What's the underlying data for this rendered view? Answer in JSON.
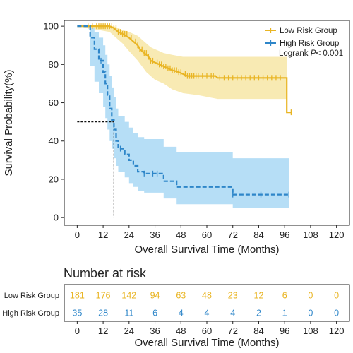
{
  "colors": {
    "low": "#E9B524",
    "low_band": "#F7E6A6",
    "high": "#2E86C9",
    "high_band": "#A9D8F5",
    "axis": "#222222"
  },
  "chart_data": {
    "type": "line",
    "subtype": "kaplan-meier",
    "xlabel": "Overall Survival Time (Months)",
    "ylabel": "Survival Probability(%)",
    "xlim": [
      -6,
      126
    ],
    "ylim": [
      -4,
      103
    ],
    "xticks": [
      0,
      12,
      24,
      36,
      48,
      60,
      72,
      84,
      96,
      108,
      120
    ],
    "yticks": [
      0,
      20,
      40,
      60,
      80,
      100
    ],
    "legend_position": "top-right",
    "annotation": {
      "prefix": "Logrank ",
      "italic": "P",
      "suffix": "< 0.001"
    },
    "median_line": {
      "x": 17,
      "y": 50
    },
    "series": [
      {
        "name": "Low Risk Group",
        "color_key": "low",
        "step": [
          [
            0,
            100
          ],
          [
            15,
            100
          ],
          [
            17,
            99
          ],
          [
            19,
            97
          ],
          [
            21,
            96
          ],
          [
            24,
            94
          ],
          [
            26,
            92
          ],
          [
            28,
            90
          ],
          [
            29,
            88
          ],
          [
            31,
            86
          ],
          [
            33,
            84
          ],
          [
            34,
            82
          ],
          [
            36,
            81
          ],
          [
            38,
            80
          ],
          [
            40,
            79
          ],
          [
            42,
            78
          ],
          [
            44,
            77
          ],
          [
            47,
            76
          ],
          [
            49,
            75
          ],
          [
            51,
            74
          ],
          [
            56,
            74
          ],
          [
            64,
            74
          ],
          [
            65,
            73
          ],
          [
            97,
            73
          ],
          [
            97,
            55
          ],
          [
            99,
            55
          ]
        ],
        "band_upper": [
          [
            0,
            100
          ],
          [
            15,
            100
          ],
          [
            17,
            100
          ],
          [
            19,
            99
          ],
          [
            21,
            98
          ],
          [
            24,
            97
          ],
          [
            26,
            96
          ],
          [
            28,
            95
          ],
          [
            30,
            93
          ],
          [
            32,
            91
          ],
          [
            34,
            89
          ],
          [
            36,
            88
          ],
          [
            38,
            87
          ],
          [
            40,
            86
          ],
          [
            44,
            85
          ],
          [
            49,
            84
          ],
          [
            56,
            84
          ],
          [
            65,
            84
          ],
          [
            97,
            84
          ]
        ],
        "band_lower": [
          [
            97,
            33
          ],
          [
            97,
            62
          ],
          [
            65,
            62
          ],
          [
            56,
            64
          ],
          [
            49,
            65
          ],
          [
            44,
            67
          ],
          [
            40,
            70
          ],
          [
            36,
            72
          ],
          [
            32,
            76
          ],
          [
            28,
            82
          ],
          [
            24,
            87
          ],
          [
            21,
            91
          ],
          [
            19,
            93
          ],
          [
            17,
            95
          ],
          [
            15,
            97
          ],
          [
            0,
            100
          ]
        ],
        "censor": [
          5,
          7,
          9,
          10,
          11,
          12,
          13,
          14,
          15,
          16,
          17,
          18,
          19,
          20,
          21,
          22,
          23,
          25,
          27,
          28,
          29,
          30,
          31,
          32,
          33,
          34,
          35,
          37,
          38,
          39,
          40,
          41,
          42,
          43,
          44,
          45,
          46,
          47,
          48,
          50,
          51,
          52,
          53,
          54,
          55,
          56,
          58,
          60,
          62,
          63,
          66,
          68,
          70,
          72,
          74,
          76,
          78,
          80,
          82,
          84,
          86,
          88,
          90,
          92,
          94,
          99
        ]
      },
      {
        "name": "High Risk Group",
        "color_key": "high",
        "step": [
          [
            0,
            100
          ],
          [
            6,
            100
          ],
          [
            6,
            94
          ],
          [
            8,
            94
          ],
          [
            8,
            88
          ],
          [
            10,
            88
          ],
          [
            10,
            82
          ],
          [
            12,
            82
          ],
          [
            12,
            76
          ],
          [
            13,
            76
          ],
          [
            13,
            70
          ],
          [
            14,
            70
          ],
          [
            14,
            64
          ],
          [
            15,
            64
          ],
          [
            15,
            57
          ],
          [
            16,
            57
          ],
          [
            16,
            51
          ],
          [
            17,
            51
          ],
          [
            17,
            46
          ],
          [
            18,
            46
          ],
          [
            18,
            40
          ],
          [
            19,
            40
          ],
          [
            19,
            36
          ],
          [
            22,
            36
          ],
          [
            22,
            33
          ],
          [
            24,
            33
          ],
          [
            24,
            30
          ],
          [
            26,
            30
          ],
          [
            26,
            27
          ],
          [
            28,
            27
          ],
          [
            28,
            24
          ],
          [
            31,
            24
          ],
          [
            31,
            23
          ],
          [
            40,
            23
          ],
          [
            40,
            19
          ],
          [
            46,
            19
          ],
          [
            46,
            16
          ],
          [
            72,
            16
          ],
          [
            72,
            12
          ],
          [
            98,
            12
          ]
        ],
        "band_upper": [
          [
            0,
            100
          ],
          [
            6,
            100
          ],
          [
            6,
            99
          ],
          [
            8,
            99
          ],
          [
            8,
            97
          ],
          [
            10,
            97
          ],
          [
            10,
            94
          ],
          [
            12,
            94
          ],
          [
            12,
            90
          ],
          [
            13,
            90
          ],
          [
            13,
            85
          ],
          [
            14,
            85
          ],
          [
            14,
            80
          ],
          [
            15,
            80
          ],
          [
            15,
            74
          ],
          [
            16,
            74
          ],
          [
            16,
            68
          ],
          [
            17,
            68
          ],
          [
            17,
            63
          ],
          [
            18,
            63
          ],
          [
            18,
            57
          ],
          [
            19,
            57
          ],
          [
            19,
            53
          ],
          [
            22,
            53
          ],
          [
            22,
            50
          ],
          [
            24,
            50
          ],
          [
            24,
            47
          ],
          [
            26,
            47
          ],
          [
            26,
            44
          ],
          [
            28,
            44
          ],
          [
            28,
            42
          ],
          [
            31,
            42
          ],
          [
            31,
            41
          ],
          [
            40,
            41
          ],
          [
            40,
            37
          ],
          [
            46,
            37
          ],
          [
            46,
            34
          ],
          [
            72,
            34
          ],
          [
            72,
            31
          ],
          [
            98,
            31
          ]
        ],
        "band_lower": [
          [
            98,
            5
          ],
          [
            72,
            5
          ],
          [
            72,
            7
          ],
          [
            46,
            7
          ],
          [
            46,
            10
          ],
          [
            40,
            10
          ],
          [
            40,
            13
          ],
          [
            31,
            13
          ],
          [
            31,
            14
          ],
          [
            28,
            14
          ],
          [
            28,
            16
          ],
          [
            26,
            16
          ],
          [
            26,
            18
          ],
          [
            24,
            18
          ],
          [
            24,
            21
          ],
          [
            22,
            21
          ],
          [
            22,
            24
          ],
          [
            19,
            24
          ],
          [
            19,
            27
          ],
          [
            18,
            27
          ],
          [
            18,
            31
          ],
          [
            17,
            31
          ],
          [
            17,
            36
          ],
          [
            16,
            36
          ],
          [
            16,
            40
          ],
          [
            15,
            40
          ],
          [
            15,
            46
          ],
          [
            14,
            46
          ],
          [
            14,
            52
          ],
          [
            13,
            52
          ],
          [
            13,
            58
          ],
          [
            12,
            58
          ],
          [
            12,
            65
          ],
          [
            10,
            65
          ],
          [
            10,
            71
          ],
          [
            8,
            71
          ],
          [
            8,
            79
          ],
          [
            6,
            79
          ],
          [
            6,
            100
          ],
          [
            0,
            100
          ]
        ],
        "censor": [
          11,
          20,
          31,
          35,
          37,
          72,
          85,
          98
        ]
      }
    ]
  },
  "risk_table": {
    "title": "Number at risk",
    "xlabel": "Overall Survival Time (Months)",
    "rows": [
      {
        "label": "Low Risk Group",
        "color_key": "low",
        "values": [
          "181",
          "176",
          "142",
          "94",
          "63",
          "48",
          "23",
          "12",
          "6",
          "0",
          "0"
        ]
      },
      {
        "label": "High Risk Group",
        "color_key": "high",
        "values": [
          "35",
          "28",
          "11",
          "6",
          "4",
          "4",
          "4",
          "2",
          "1",
          "0",
          "0"
        ]
      }
    ]
  }
}
